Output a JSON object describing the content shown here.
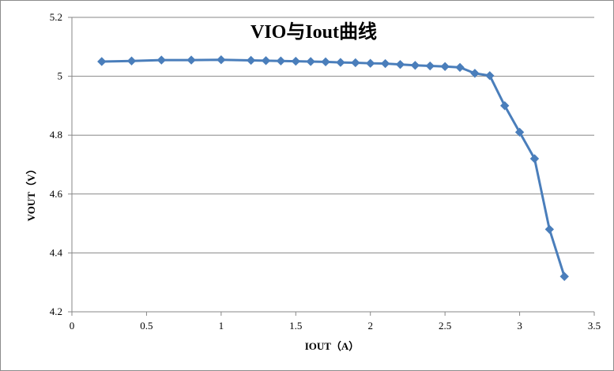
{
  "chart_data": {
    "type": "line",
    "title": "VIO与Iout曲线",
    "xlabel": "IOUT（A）",
    "ylabel": "VOUT（V）",
    "xlim": [
      0,
      3.5
    ],
    "ylim": [
      4.2,
      5.2
    ],
    "xticks": [
      0,
      0.5,
      1,
      1.5,
      2,
      2.5,
      3,
      3.5
    ],
    "yticks": [
      4.2,
      4.4,
      4.6,
      4.8,
      5,
      5.2
    ],
    "xtick_labels": [
      "0",
      "0.5",
      "1",
      "1.5",
      "2",
      "2.5",
      "3",
      "3.5"
    ],
    "ytick_labels": [
      "4.2",
      "4.4",
      "4.6",
      "4.8",
      "5",
      "5.2"
    ],
    "grid": "horizontal",
    "legend": "none",
    "series": [
      {
        "color": "#4a7ebb",
        "marker": "diamond",
        "x": [
          0.2,
          0.4,
          0.6,
          0.8,
          1.0,
          1.2,
          1.3,
          1.4,
          1.5,
          1.6,
          1.7,
          1.8,
          1.9,
          2.0,
          2.1,
          2.2,
          2.3,
          2.4,
          2.5,
          2.6,
          2.7,
          2.8,
          2.9,
          3.0,
          3.1,
          3.2,
          3.3
        ],
        "y": [
          5.05,
          5.052,
          5.055,
          5.055,
          5.056,
          5.054,
          5.053,
          5.052,
          5.051,
          5.05,
          5.049,
          5.047,
          5.046,
          5.044,
          5.043,
          5.04,
          5.037,
          5.035,
          5.033,
          5.03,
          5.01,
          5.002,
          4.9,
          4.81,
          4.72,
          4.48,
          4.32
        ]
      }
    ]
  }
}
